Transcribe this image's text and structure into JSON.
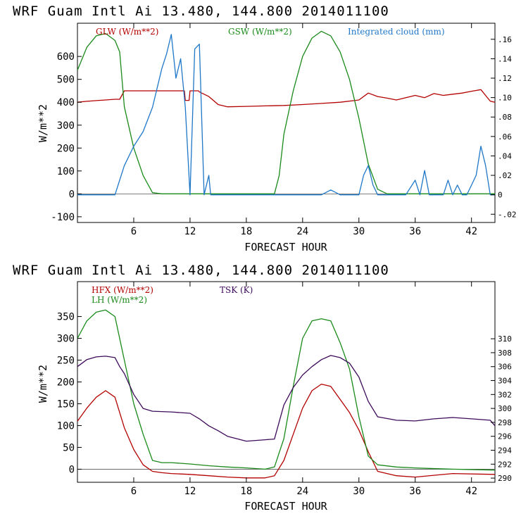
{
  "chart_data": [
    {
      "type": "line",
      "title": "WRF  Guam Intl Ai  13.480, 144.800  2014011100",
      "xlabel": "FORECAST HOUR",
      "ylabel": "W/m**2",
      "xlim": [
        0,
        44.5
      ],
      "ylim": [
        -125,
        745
      ],
      "y2lim": [
        -0.0285,
        0.1765
      ],
      "xticks": [
        "6",
        "12",
        "18",
        "24",
        "30",
        "36",
        "42"
      ],
      "yticks": [
        "-100",
        "0",
        "100",
        "200",
        "300",
        "400",
        "500",
        "600"
      ],
      "y2ticks": [
        "-.02",
        "0",
        ".02",
        ".04",
        ".06",
        ".08",
        ".10",
        ".12",
        ".14",
        ".16"
      ],
      "series": [
        {
          "name": "GLW (W/m**2)",
          "color": "#b30000",
          "axis": "left",
          "x": [
            0,
            1,
            2,
            3,
            4,
            4.5,
            5,
            6,
            7,
            8,
            9,
            10,
            11,
            11.4,
            11.5,
            11.9,
            12,
            12.9,
            13,
            14,
            15,
            16,
            18,
            20,
            22,
            24,
            26,
            28,
            30,
            31,
            32,
            33,
            34,
            35,
            36,
            37,
            38,
            39,
            40,
            41,
            42,
            43,
            44,
            44.5
          ],
          "y": [
            400,
            404,
            407,
            410,
            413,
            413,
            450,
            450,
            450,
            450,
            450,
            450,
            450,
            450,
            408,
            408,
            450,
            450,
            445,
            425,
            390,
            380,
            382,
            384,
            386,
            390,
            395,
            400,
            410,
            440,
            425,
            418,
            410,
            420,
            430,
            420,
            438,
            430,
            435,
            440,
            448,
            455,
            405,
            400
          ]
        },
        {
          "name": "GSW (W/m**2)",
          "color": "#1a8a1a",
          "axis": "left",
          "x": [
            0,
            1,
            2,
            3,
            4,
            4.5,
            5,
            6,
            7,
            8,
            9,
            12,
            18,
            21,
            21.5,
            22,
            23,
            24,
            25,
            26,
            27,
            28,
            29,
            30,
            31,
            32,
            33,
            36,
            42,
            44.5
          ],
          "y": [
            540,
            640,
            690,
            700,
            670,
            620,
            380,
            200,
            80,
            5,
            0,
            0,
            0,
            0,
            80,
            260,
            450,
            600,
            680,
            710,
            690,
            620,
            500,
            330,
            130,
            20,
            0,
            0,
            0,
            0
          ]
        },
        {
          "name": "Integrated cloud (mm)",
          "color": "#1f77c8",
          "axis": "right",
          "x": [
            0,
            4,
            5,
            6,
            7,
            8,
            9,
            9.5,
            10,
            10.5,
            11,
            11.5,
            12,
            12.5,
            13,
            13.5,
            14,
            14.2,
            15,
            26,
            27,
            28,
            30,
            30.5,
            31,
            31.5,
            32,
            35,
            36,
            36.5,
            37,
            37.5,
            38,
            39,
            39.5,
            40,
            40.5,
            41,
            41.5,
            42,
            42.5,
            43,
            43.5,
            44,
            44.5
          ],
          "y": [
            0,
            0,
            0.03,
            0.05,
            0.065,
            0.09,
            0.13,
            0.145,
            0.165,
            0.12,
            0.14,
            0.09,
            0,
            0.15,
            0.155,
            0,
            0.02,
            0,
            0,
            0,
            0.005,
            0,
            0,
            0.02,
            0.03,
            0.01,
            0,
            0,
            0.015,
            0,
            0.025,
            0,
            0,
            0,
            0.015,
            0,
            0.01,
            0,
            0,
            0.01,
            0.02,
            0.05,
            0.03,
            0,
            0
          ]
        }
      ]
    },
    {
      "type": "line",
      "title": "WRF  Guam Intl Ai  13.480, 144.800  2014011100",
      "xlabel": "FORECAST HOUR",
      "ylabel": "W/m**2",
      "xlim": [
        0,
        44.5
      ],
      "ylim": [
        -30,
        430
      ],
      "y2lim": [
        289.4,
        318.2
      ],
      "xticks": [
        "6",
        "12",
        "18",
        "24",
        "30",
        "36",
        "42"
      ],
      "yticks": [
        "0",
        "50",
        "100",
        "150",
        "200",
        "250",
        "300",
        "350"
      ],
      "y2ticks": [
        "290",
        "292",
        "294",
        "296",
        "298",
        "300",
        "302",
        "304",
        "306",
        "308",
        "310"
      ],
      "series": [
        {
          "name": "HFX (W/m**2)",
          "color": "#b30000",
          "axis": "left",
          "x": [
            0,
            1,
            2,
            3,
            4,
            5,
            6,
            7,
            8,
            9,
            10,
            12,
            14,
            16,
            18,
            20,
            21,
            22,
            23,
            24,
            25,
            26,
            27,
            28,
            29,
            30,
            31,
            32,
            34,
            36,
            40,
            44.5
          ],
          "y": [
            110,
            140,
            165,
            180,
            165,
            95,
            45,
            10,
            -5,
            -8,
            -10,
            -12,
            -15,
            -18,
            -20,
            -20,
            -15,
            20,
            80,
            140,
            180,
            195,
            190,
            160,
            130,
            90,
            40,
            -5,
            -15,
            -18,
            -10,
            -12
          ]
        },
        {
          "name": "LH (W/m**2)",
          "color": "#1a8a1a",
          "axis": "left",
          "x": [
            0,
            1,
            2,
            3,
            4,
            5,
            6,
            7,
            8,
            9,
            10,
            12,
            14,
            16,
            18,
            20,
            21,
            22,
            23,
            24,
            25,
            26,
            27,
            28,
            29,
            30,
            31,
            32,
            34,
            36,
            40,
            44.5
          ],
          "y": [
            300,
            340,
            360,
            365,
            350,
            250,
            150,
            80,
            20,
            15,
            15,
            12,
            8,
            5,
            3,
            0,
            5,
            70,
            190,
            300,
            340,
            345,
            340,
            290,
            230,
            120,
            30,
            10,
            5,
            3,
            0,
            -2
          ]
        },
        {
          "name": "TSK (K)",
          "color": "#3d0a5a",
          "axis": "right",
          "x": [
            0,
            1,
            2,
            3,
            4,
            4.5,
            5,
            6,
            7,
            8,
            10,
            12,
            13,
            14,
            15,
            16,
            18,
            20,
            21,
            22,
            23,
            24,
            25,
            26,
            27,
            28,
            29,
            30,
            31,
            32,
            34,
            36,
            38,
            40,
            42,
            44,
            44.5
          ],
          "y": [
            306,
            307,
            307.4,
            307.5,
            307.3,
            306,
            305,
            302,
            300,
            299.6,
            299.5,
            299.3,
            298.5,
            297.5,
            296.8,
            296,
            295.3,
            295.5,
            295.6,
            300.5,
            303,
            304.8,
            306,
            307,
            307.6,
            307.3,
            306.5,
            304.5,
            301,
            298.8,
            298.3,
            298.2,
            298.5,
            298.7,
            298.5,
            298.3,
            297.5
          ]
        }
      ]
    }
  ]
}
